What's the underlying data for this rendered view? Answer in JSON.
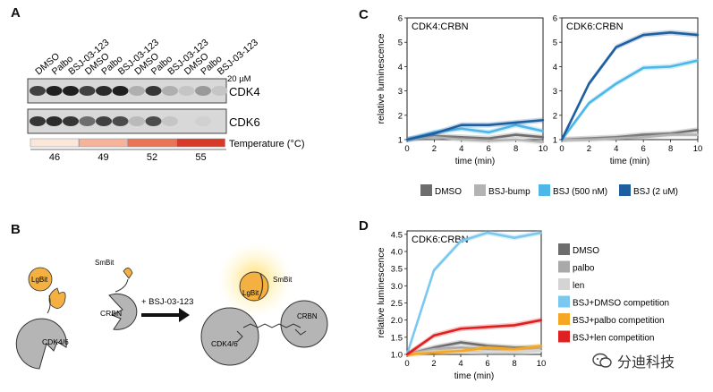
{
  "panels": {
    "a": {
      "label": "A",
      "lanes": [
        "DMSO",
        "Palbo",
        "BSJ-03-123",
        "DMSO",
        "Palbo",
        "BSJ-03-123",
        "DMSO",
        "Palbo",
        "BSJ-03-123",
        "DMSO",
        "Palbo",
        "BSJ-03-123"
      ],
      "conc": "20 µM",
      "blots": [
        "CDK4",
        "CDK6"
      ],
      "temp_label": "Temperature (°C)",
      "temps": [
        "46",
        "49",
        "52",
        "55"
      ],
      "temp_colors": [
        "#fbe6da",
        "#f4b39a",
        "#ea7456",
        "#d83a2a"
      ],
      "band_intensity": {
        "CDK4": [
          0.75,
          0.9,
          0.9,
          0.75,
          0.85,
          0.9,
          0.25,
          0.8,
          0.25,
          0.15,
          0.35,
          0.15
        ],
        "CDK6": [
          0.8,
          0.85,
          0.8,
          0.55,
          0.75,
          0.7,
          0.2,
          0.7,
          0.15,
          0.0,
          0.1,
          0.0
        ]
      }
    },
    "b": {
      "label": "B",
      "lgbit": "LgBit",
      "smbit": "SmBit",
      "cdk": "CDK4/6",
      "crbn": "CRBN",
      "treatment": "+ BSJ-03-123"
    },
    "c": {
      "label": "C"
    },
    "d": {
      "label": "D"
    }
  },
  "chart_data": [
    {
      "type": "line",
      "title": "CDK4:CRBN",
      "xlabel": "time (min)",
      "ylabel": "relative luminescence",
      "xlim": [
        0,
        10
      ],
      "ylim": [
        1,
        6
      ],
      "xticks": [
        0,
        2,
        4,
        6,
        8,
        10
      ],
      "yticks": [
        1,
        2,
        3,
        4,
        5,
        6
      ],
      "x": [
        0,
        2,
        4,
        6,
        8,
        10
      ],
      "series": [
        {
          "name": "DMSO",
          "color": "#6d6d6d",
          "values": [
            1.0,
            1.15,
            1.1,
            1.05,
            1.2,
            1.1
          ]
        },
        {
          "name": "BSJ-bump",
          "color": "#b3b3b3",
          "values": [
            1.0,
            1.1,
            1.0,
            0.95,
            1.0,
            0.9
          ]
        },
        {
          "name": "BSJ (500 nM)",
          "color": "#4db8e8",
          "values": [
            1.0,
            1.3,
            1.45,
            1.3,
            1.6,
            1.35
          ]
        },
        {
          "name": "BSJ (2 uM)",
          "color": "#1f5fa0",
          "values": [
            1.0,
            1.25,
            1.6,
            1.6,
            1.7,
            1.8
          ]
        }
      ]
    },
    {
      "type": "line",
      "title": "CDK6:CRBN",
      "xlabel": "time (min)",
      "ylabel": "",
      "xlim": [
        0,
        10
      ],
      "ylim": [
        1,
        6
      ],
      "xticks": [
        0,
        2,
        4,
        6,
        8,
        10
      ],
      "yticks": [
        1,
        2,
        3,
        4,
        5,
        6
      ],
      "x": [
        0,
        2,
        4,
        6,
        8,
        10
      ],
      "series": [
        {
          "name": "DMSO",
          "color": "#6d6d6d",
          "values": [
            1.0,
            1.05,
            1.1,
            1.2,
            1.25,
            1.4
          ]
        },
        {
          "name": "BSJ-bump",
          "color": "#b3b3b3",
          "values": [
            1.0,
            1.0,
            1.05,
            1.1,
            1.2,
            1.2
          ]
        },
        {
          "name": "BSJ (500 nM)",
          "color": "#4db8e8",
          "values": [
            1.0,
            2.5,
            3.3,
            3.95,
            4.0,
            4.25
          ]
        },
        {
          "name": "BSJ (2 uM)",
          "color": "#1f5fa0",
          "values": [
            1.0,
            3.3,
            4.8,
            5.3,
            5.4,
            5.3
          ]
        }
      ]
    },
    {
      "type": "line",
      "title": "CDK6:CRBN",
      "xlabel": "time (min)",
      "ylabel": "relative luminescence",
      "xlim": [
        0,
        10
      ],
      "ylim": [
        1,
        4.6
      ],
      "xticks": [
        0,
        2,
        4,
        6,
        8,
        10
      ],
      "yticks": [
        1.0,
        1.5,
        2.0,
        2.5,
        3.0,
        3.5,
        4.0,
        4.5
      ],
      "x": [
        0,
        2,
        4,
        6,
        8,
        10
      ],
      "series": [
        {
          "name": "DMSO",
          "color": "#6d6d6d",
          "values": [
            1.0,
            1.2,
            1.35,
            1.25,
            1.2,
            1.2
          ]
        },
        {
          "name": "palbo",
          "color": "#a9a9a9",
          "values": [
            1.0,
            1.15,
            1.2,
            1.15,
            1.15,
            1.2
          ]
        },
        {
          "name": "len",
          "color": "#d4d4d4",
          "values": [
            1.0,
            1.1,
            1.1,
            1.05,
            1.05,
            1.1
          ]
        },
        {
          "name": "BSJ+DMSO competition",
          "color": "#7ac8ef",
          "values": [
            1.0,
            3.45,
            4.3,
            4.55,
            4.4,
            4.55
          ]
        },
        {
          "name": "BSJ+palbo competition",
          "color": "#f5a623",
          "values": [
            1.0,
            1.05,
            1.1,
            1.2,
            1.15,
            1.25
          ]
        },
        {
          "name": "BSJ+len competition",
          "color": "#e02020",
          "values": [
            1.0,
            1.55,
            1.75,
            1.8,
            1.85,
            2.0
          ]
        }
      ]
    }
  ],
  "watermark": "分迪科技"
}
